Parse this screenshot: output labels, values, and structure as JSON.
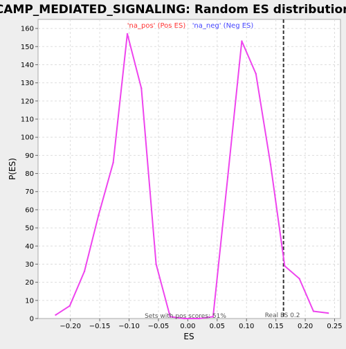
{
  "chart_data": {
    "type": "line",
    "title": "CAMP_MEDIATED_SIGNALING: Random ES distribution",
    "xlabel": "ES",
    "ylabel": "P(ES)",
    "xlim": [
      -0.255,
      0.26
    ],
    "ylim": [
      0,
      165
    ],
    "xticks": [
      -0.2,
      -0.15,
      -0.1,
      -0.05,
      0.0,
      0.05,
      0.1,
      0.15,
      0.2,
      0.25
    ],
    "xtick_labels": [
      "−0.20",
      "−0.15",
      "−0.10",
      "−0.05",
      "0.00",
      "0.05",
      "0.10",
      "0.15",
      "0.20",
      "0.25"
    ],
    "yticks": [
      0,
      10,
      20,
      30,
      40,
      50,
      60,
      70,
      80,
      90,
      100,
      110,
      120,
      130,
      140,
      150,
      160
    ],
    "grid": true,
    "series": [
      {
        "color": "#ee44ee",
        "x": [
          -0.225,
          -0.201,
          -0.176,
          -0.152,
          -0.127,
          -0.103,
          -0.079,
          -0.054,
          -0.03,
          -0.006,
          0.019,
          0.043,
          0.068,
          0.092,
          0.116,
          0.141,
          0.165,
          0.19,
          0.214,
          0.239
        ],
        "y": [
          2,
          7,
          26,
          57,
          86,
          157,
          127,
          30,
          1,
          0,
          0,
          1,
          78,
          153,
          135,
          85,
          29,
          22,
          4,
          3
        ]
      }
    ],
    "legend": [
      {
        "label": "'na_pos' (Pos ES)",
        "color": "#ff3333"
      },
      {
        "label": "'na_neg' (Neg ES)",
        "color": "#4444ff"
      }
    ],
    "legend_placement": "top-center",
    "reference_line": {
      "x": 0.163,
      "label": "Real ES 0.2",
      "style": "dashed",
      "color": "#333333"
    },
    "annotation": "Sets with pos scores: 51%"
  }
}
